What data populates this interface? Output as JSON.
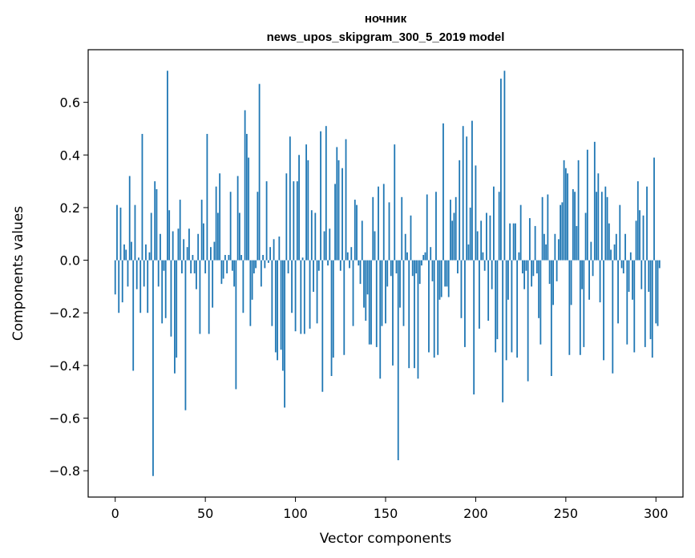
{
  "chart_data": {
    "type": "bar",
    "title_line1": "ночник",
    "title_line2": "news_upos_skipgram_300_5_2019 model",
    "xlabel": "Vector components",
    "ylabel": "Components values",
    "xlim": [
      -15,
      315
    ],
    "ylim": [
      -0.9,
      0.8
    ],
    "grid": false,
    "bar_color": "#1f77b4",
    "xticks": [
      0,
      50,
      100,
      150,
      200,
      250,
      300
    ],
    "xtick_labels": [
      "0",
      "50",
      "100",
      "150",
      "200",
      "250",
      "300"
    ],
    "yticks": [
      -0.8,
      -0.6,
      -0.4,
      -0.2,
      0.0,
      0.2,
      0.4,
      0.6
    ],
    "ytick_labels": [
      "−0.8",
      "−0.6",
      "−0.4",
      "−0.2",
      "0.0",
      "0.2",
      "0.4",
      "0.6"
    ],
    "values": [
      -0.13,
      0.21,
      -0.2,
      0.2,
      -0.16,
      0.06,
      0.04,
      -0.1,
      0.32,
      0.07,
      -0.42,
      0.21,
      -0.11,
      0.01,
      -0.2,
      0.48,
      -0.1,
      0.06,
      -0.2,
      0.03,
      0.18,
      -0.82,
      0.3,
      0.27,
      -0.1,
      0.1,
      -0.24,
      -0.04,
      -0.22,
      0.72,
      0.19,
      -0.29,
      0.11,
      -0.43,
      -0.37,
      0.12,
      0.23,
      -0.05,
      0.08,
      -0.57,
      0.05,
      0.12,
      -0.05,
      0.02,
      -0.05,
      -0.11,
      0.1,
      -0.28,
      0.23,
      0.14,
      -0.05,
      0.48,
      -0.28,
      0.05,
      -0.18,
      0.07,
      0.28,
      0.18,
      0.33,
      -0.09,
      -0.07,
      0.02,
      -0.05,
      0.02,
      0.26,
      -0.04,
      -0.1,
      -0.49,
      0.32,
      0.18,
      0.02,
      -0.2,
      0.57,
      0.48,
      0.39,
      -0.25,
      -0.15,
      -0.05,
      -0.03,
      0.26,
      0.67,
      -0.1,
      0.02,
      -0.03,
      0.3,
      -0.01,
      0.05,
      -0.25,
      0.08,
      -0.35,
      -0.38,
      0.09,
      -0.34,
      -0.42,
      -0.56,
      0.33,
      -0.05,
      0.47,
      -0.2,
      0.3,
      -0.27,
      0.3,
      0.4,
      -0.28,
      0.01,
      -0.28,
      0.44,
      0.38,
      -0.26,
      0.19,
      -0.12,
      0.18,
      -0.24,
      -0.04,
      0.49,
      -0.5,
      0.11,
      0.51,
      -0.02,
      0.12,
      -0.44,
      -0.37,
      0.29,
      0.43,
      0.38,
      -0.04,
      0.35,
      -0.36,
      0.46,
      0.03,
      -0.03,
      0.05,
      -0.25,
      0.23,
      0.21,
      -0.02,
      -0.09,
      0.15,
      -0.18,
      -0.23,
      -0.13,
      -0.32,
      -0.32,
      0.24,
      0.11,
      -0.33,
      0.28,
      -0.45,
      -0.25,
      0.29,
      -0.24,
      -0.1,
      0.22,
      -0.06,
      -0.4,
      0.44,
      -0.05,
      -0.76,
      -0.18,
      0.24,
      -0.25,
      0.1,
      0.03,
      -0.41,
      0.17,
      -0.06,
      -0.41,
      -0.05,
      -0.45,
      -0.09,
      -0.02,
      0.02,
      0.03,
      0.25,
      -0.35,
      0.05,
      -0.08,
      -0.37,
      0.26,
      -0.36,
      -0.15,
      -0.14,
      0.52,
      -0.1,
      -0.1,
      -0.14,
      0.23,
      0.15,
      0.18,
      0.24,
      -0.05,
      0.38,
      -0.22,
      0.51,
      -0.33,
      0.47,
      0.06,
      0.2,
      0.53,
      -0.51,
      0.36,
      0.11,
      -0.26,
      0.15,
      0.03,
      -0.04,
      0.18,
      -0.23,
      0.17,
      -0.11,
      0.28,
      -0.35,
      -0.3,
      0.26,
      0.69,
      -0.54,
      0.72,
      -0.38,
      -0.15,
      0.14,
      -0.35,
      0.14,
      0.14,
      -0.37,
      0.03,
      0.21,
      -0.05,
      -0.11,
      -0.04,
      -0.46,
      0.16,
      -0.1,
      -0.06,
      0.13,
      -0.05,
      -0.22,
      -0.32,
      0.24,
      0.1,
      0.06,
      0.25,
      -0.09,
      -0.44,
      -0.17,
      0.1,
      -0.08,
      0.08,
      0.21,
      0.22,
      0.38,
      0.35,
      0.33,
      -0.36,
      -0.17,
      0.27,
      0.26,
      0.13,
      0.38,
      -0.36,
      -0.11,
      -0.33,
      0.18,
      0.42,
      -0.15,
      0.07,
      -0.06,
      0.45,
      0.26,
      0.33,
      -0.16,
      0.26,
      -0.38,
      0.28,
      0.24,
      0.14,
      0.04,
      -0.43,
      0.06,
      0.1,
      -0.24,
      0.21,
      -0.03,
      -0.05,
      0.1,
      -0.32,
      -0.12,
      0.03,
      -0.15,
      -0.35,
      0.15,
      0.3,
      0.19,
      -0.11,
      0.17,
      -0.33,
      0.28,
      -0.12,
      -0.3,
      -0.37,
      0.39,
      -0.24,
      -0.25,
      -0.03
    ]
  }
}
